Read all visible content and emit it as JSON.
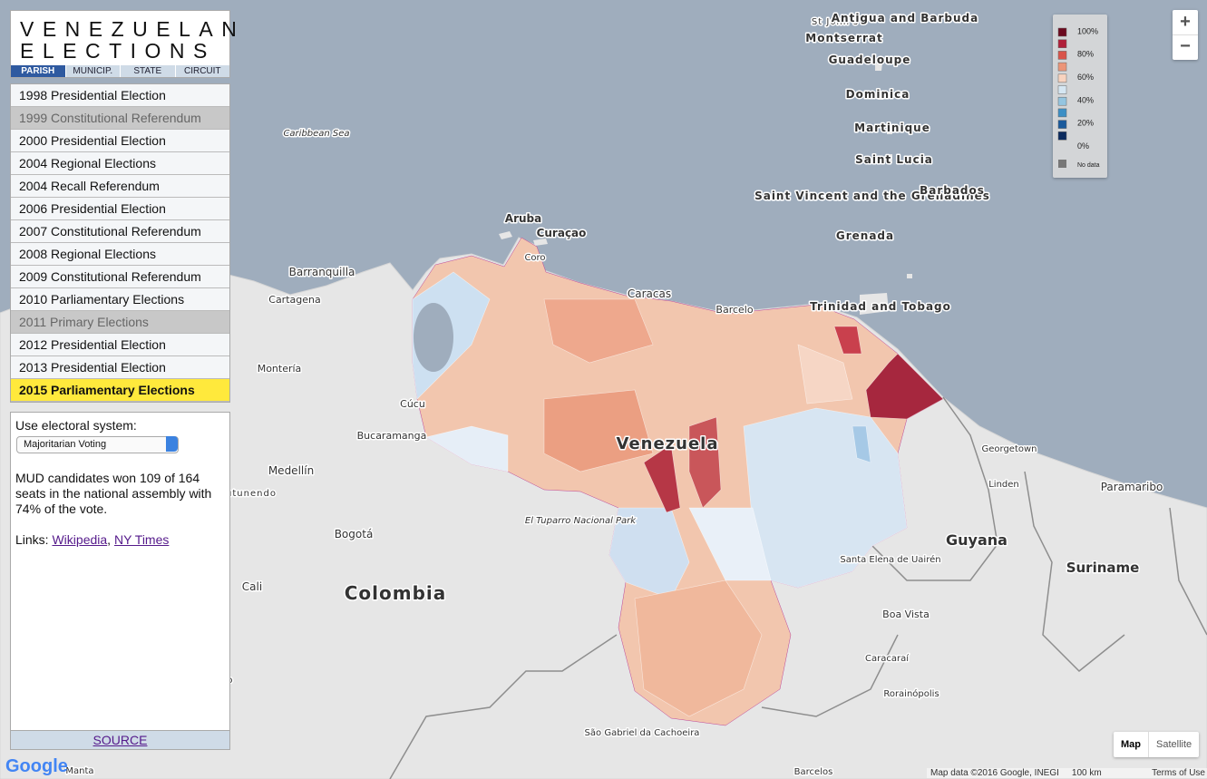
{
  "header": {
    "title_lines": [
      "VENEZUELAN",
      "ELECTIONS"
    ],
    "tabs": [
      "PARISH",
      "MUNICIP.",
      "STATE",
      "CIRCUIT"
    ]
  },
  "elections": [
    "1998 Presidential Election",
    "1999 Constitutional Referendum",
    "2000 Presidential Election",
    "2004 Regional Elections",
    "2004 Recall Referendum",
    "2006 Presidential Election",
    "2007 Constitutional Referendum",
    "2008 Regional Elections",
    "2009 Constitutional Referendum",
    "2010 Parliamentary Elections",
    "2011 Primary Elections",
    "2012 Presidential Election",
    "2013 Presidential Election",
    "2015 Parliamentary Elections"
  ],
  "info": {
    "system_label": "Use electoral system:",
    "system_select": "Majoritarian Voting",
    "summary": "MUD candidates won 109 of 164 seats in the national assembly with 74% of the vote.",
    "links_label": "Links:",
    "links": [
      "Wikipedia",
      "NY Times"
    ]
  },
  "source": "SOURCE",
  "legend": {
    "labels": [
      "100%",
      "80%",
      "60%",
      "40%",
      "20%",
      "0%"
    ],
    "no_data": "No data"
  },
  "map_labels": [
    "Caribbean Sea",
    "Aruba",
    "Curaçao",
    "Coro",
    "Caracas",
    "Barcelo",
    "Barranquilla",
    "Cartagena",
    "Montería",
    "Cúcu",
    "Bucaramanga",
    "Medellín",
    "Bogotá",
    "Cali",
    "Colombia",
    "Venezuela",
    "Guyana",
    "Suriname",
    "Georgetown",
    "Paramaribo",
    "Linden",
    "Boa Vista",
    "Caracaraí",
    "Rorainópolis",
    "São Gabriel da Cachoeira",
    "Barcelos",
    "Manta",
    "Pasto",
    "Santa Elena de Uairén",
    "El Tuparro Nacional Park",
    "St John's",
    "Antigua and Barbuda",
    "Montserrat",
    "Guadeloupe",
    "Dominica",
    "Martinique",
    "Saint Lucia",
    "Saint Vincent and the Grenadines",
    "Barbados",
    "Grenada",
    "Trinidad and Tobago",
    "utunendo"
  ],
  "controls": {
    "zoom_in": "+",
    "zoom_out": "−",
    "map_types": [
      "Map",
      "Satellite"
    ]
  },
  "attribution": {
    "logo": "Google",
    "map_data": "Map data ©2016 Google, INEGI",
    "scale": "100 km",
    "terms": "Terms of Use"
  }
}
